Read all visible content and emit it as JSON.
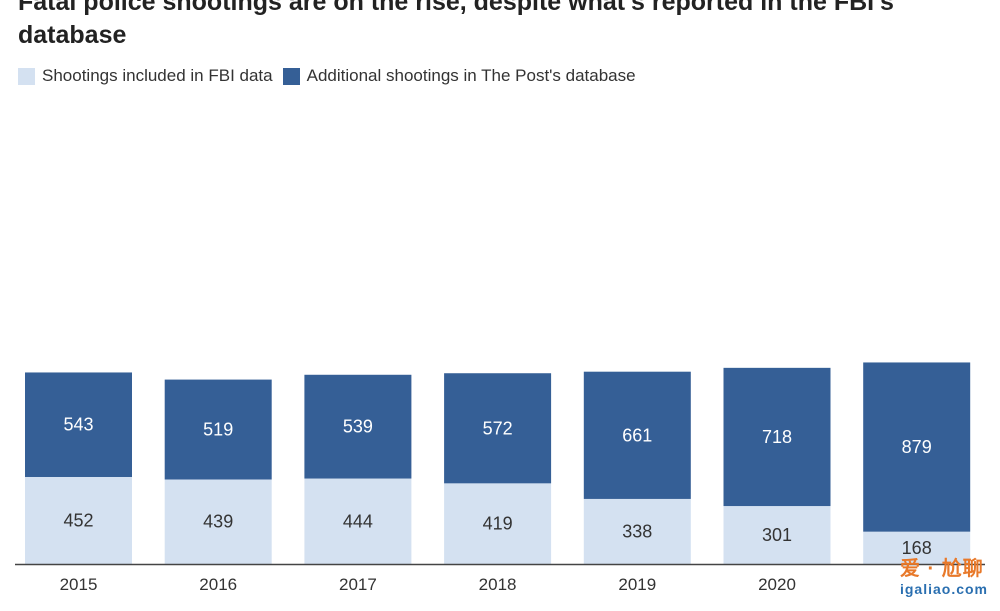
{
  "title": "Fatal police shootings are on the rise, despite what's reported in the FBI's database",
  "legend": [
    {
      "label": "Shootings included in FBI data",
      "color": "#d4e1f1"
    },
    {
      "label": "Additional shootings in The Post's database",
      "color": "#355f96"
    }
  ],
  "watermark": {
    "text": "爱 · 尬聊",
    "sub": "igaliao.com"
  },
  "chart_data": {
    "type": "bar",
    "stacked": true,
    "categories": [
      "2015",
      "2016",
      "2017",
      "2018",
      "2019",
      "2020",
      ""
    ],
    "series": [
      {
        "name": "Shootings included in FBI data",
        "color": "#d4e1f1",
        "values": [
          452,
          439,
          444,
          419,
          338,
          301,
          168
        ]
      },
      {
        "name": "Additional shootings in The Post's database",
        "color": "#355f96",
        "values": [
          543,
          519,
          539,
          572,
          661,
          718,
          879
        ]
      }
    ],
    "title": "Fatal police shootings are on the rise, despite what's reported in the FBI's database",
    "xlabel": "",
    "ylabel": "",
    "grid": false,
    "legend_position": "top-left"
  }
}
